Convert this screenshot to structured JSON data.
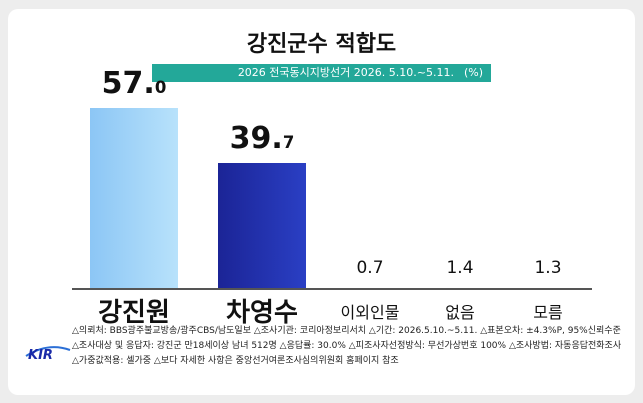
{
  "header": {
    "title": "강진군수 적합도",
    "subtitle": "2026 전국동시지방선거 2026. 5.10.~5.11.",
    "unit": "(%)"
  },
  "logo_text": "KIR",
  "chart_data": {
    "type": "bar",
    "categories": [
      "강진원",
      "차영수",
      "이외인물",
      "없음",
      "모름"
    ],
    "values": [
      57.0,
      39.7,
      0.7,
      1.4,
      1.3
    ],
    "value_labels": [
      {
        "int": "57.",
        "dec": "0"
      },
      {
        "int": "39.",
        "dec": "7"
      },
      {
        "int": "0.7",
        "dec": ""
      },
      {
        "int": "1.4",
        "dec": ""
      },
      {
        "int": "1.3",
        "dec": ""
      }
    ],
    "colors": [
      "#9fd1f6",
      "#1a2aa8",
      "#cccccc",
      "#cccccc",
      "#cccccc"
    ],
    "ylim": [
      0,
      60
    ]
  },
  "footer": {
    "lines": [
      "△의뢰처: BBS광주불교방송/광주CBS/남도일보  △조사기관: 코리아정보리서치  △기간: 2026.5.10.~5.11.  △표본오차: ±4.3%P, 95%신뢰수준",
      "△조사대상 및 응답자: 강진군 만18세이상 남녀 512명  △응답률: 30.0%  △피조사자선정방식: 무선가상번호 100%  △조사방법: 자동응답전화조사",
      "△가중값적용: 셀가중  △보다 자세한 사항은 중앙선거여론조사심의위원회 홈페이지 참조"
    ]
  }
}
